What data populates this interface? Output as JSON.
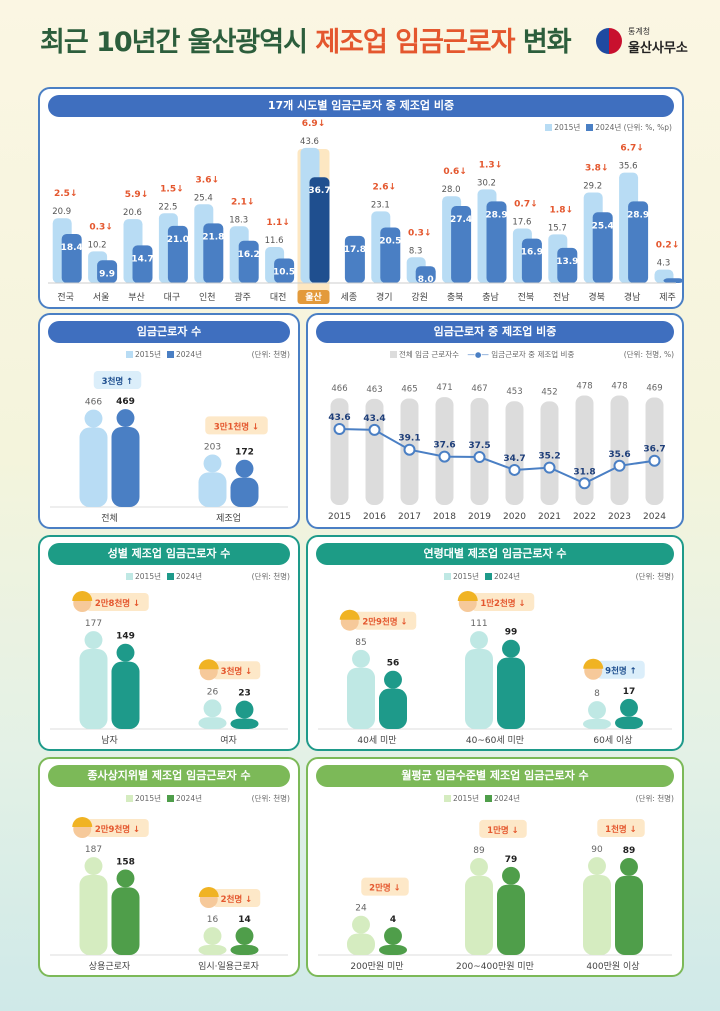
{
  "title": {
    "part1": "최근 10년간 울산광역시 ",
    "highlight": "제조업 임금근로자",
    "part2": " 변화"
  },
  "logo": {
    "small": "통계청",
    "big": "울산사무소"
  },
  "colors": {
    "blue_light": "#b8dcf4",
    "blue_dark": "#4a7fc4",
    "blue_header": "#3f6fbf",
    "teal_light": "#bfe8e4",
    "teal_dark": "#1e9a8a",
    "teal_header": "#1d9c86",
    "green_light": "#d5ecc0",
    "green_dark": "#4f9e4a",
    "green_header": "#7cb958",
    "red": "#e4572e",
    "gray_bar": "#dcdcdc"
  },
  "legend_common": {
    "y2015": "2015년",
    "y2024": "2024년",
    "unit_people": "(단위: 천명)"
  },
  "chart_data": [
    {
      "id": "sido",
      "type": "bar",
      "title": "17개 시도별 임금근로자 중 제조업 비중",
      "legend": [
        "2015년",
        "2024년"
      ],
      "unit": "(단위: %, %p)",
      "categories": [
        "전국",
        "서울",
        "부산",
        "대구",
        "인천",
        "광주",
        "대전",
        "울산",
        "세종",
        "경기",
        "강원",
        "충북",
        "충남",
        "전북",
        "전남",
        "경북",
        "경남",
        "제주"
      ],
      "series": [
        {
          "name": "2015년",
          "values": [
            20.9,
            10.2,
            20.6,
            22.5,
            25.4,
            18.3,
            11.6,
            43.6,
            null,
            23.1,
            8.3,
            28.0,
            30.2,
            17.6,
            15.7,
            29.2,
            35.6,
            4.3
          ]
        },
        {
          "name": "2024년",
          "values": [
            18.4,
            9.9,
            14.7,
            21.0,
            21.8,
            16.2,
            10.5,
            36.7,
            17.8,
            20.5,
            8.0,
            27.4,
            28.9,
            16.9,
            13.9,
            25.4,
            28.9,
            4.1
          ]
        }
      ],
      "change": [
        "2.5",
        "0.3",
        "5.9",
        "1.5",
        "3.6",
        "2.1",
        "1.1",
        "6.9",
        "",
        "2.6",
        "0.3",
        "0.6",
        "1.3",
        "0.7",
        "1.8",
        "3.8",
        "6.7",
        "0.2"
      ],
      "change_arrow": "↓",
      "highlight": "울산"
    },
    {
      "id": "wage_workers",
      "type": "bar",
      "title": "임금근로자 수",
      "legend": [
        "2015년",
        "2024년"
      ],
      "unit": "(단위: 천명)",
      "categories": [
        "전체",
        "제조업"
      ],
      "series": [
        {
          "name": "2015년",
          "values": [
            466,
            203
          ]
        },
        {
          "name": "2024년",
          "values": [
            469,
            172
          ]
        }
      ],
      "change": [
        "3천명 ↑",
        "3만1천명 ↓"
      ]
    },
    {
      "id": "share_trend",
      "type": "line",
      "title": "임금근로자 중 제조업 비중",
      "legend": [
        "전체 임금 근로자수",
        "임금근로자 중 제조업 비중"
      ],
      "unit": "(단위: 천명, %)",
      "x": [
        "2015",
        "2016",
        "2017",
        "2018",
        "2019",
        "2020",
        "2021",
        "2022",
        "2023",
        "2024"
      ],
      "series": [
        {
          "name": "전체 임금 근로자수",
          "type": "bar",
          "values": [
            466,
            463,
            465,
            471,
            467,
            453,
            452,
            478,
            478,
            469
          ]
        },
        {
          "name": "임금근로자 중 제조업 비중",
          "type": "line",
          "values": [
            43.6,
            43.4,
            39.1,
            37.6,
            37.5,
            34.7,
            35.2,
            31.8,
            35.6,
            36.7
          ]
        }
      ]
    },
    {
      "id": "gender",
      "type": "bar",
      "title": "성별 제조업 임금근로자 수",
      "legend": [
        "2015년",
        "2024년"
      ],
      "unit": "(단위: 천명)",
      "categories": [
        "남자",
        "여자"
      ],
      "series": [
        {
          "name": "2015년",
          "values": [
            177,
            26
          ]
        },
        {
          "name": "2024년",
          "values": [
            149,
            23
          ]
        }
      ],
      "change": [
        "2만8천명 ↓",
        "3천명 ↓"
      ]
    },
    {
      "id": "age",
      "type": "bar",
      "title": "연령대별 제조업 임금근로자 수",
      "legend": [
        "2015년",
        "2024년"
      ],
      "unit": "(단위: 천명)",
      "categories": [
        "40세 미만",
        "40~60세 미만",
        "60세 이상"
      ],
      "series": [
        {
          "name": "2015년",
          "values": [
            85,
            111,
            8
          ]
        },
        {
          "name": "2024년",
          "values": [
            56,
            99,
            17
          ]
        }
      ],
      "change": [
        "2만9천명 ↓",
        "1만2천명 ↓",
        "9천명 ↑"
      ]
    },
    {
      "id": "status",
      "type": "bar",
      "title": "종사상지위별 제조업 임금근로자 수",
      "legend": [
        "2015년",
        "2024년"
      ],
      "unit": "(단위: 천명)",
      "categories": [
        "상용근로자",
        "임시·일용근로자"
      ],
      "series": [
        {
          "name": "2015년",
          "values": [
            187,
            16
          ]
        },
        {
          "name": "2024년",
          "values": [
            158,
            14
          ]
        }
      ],
      "change": [
        "2만9천명 ↓",
        "2천명 ↓"
      ]
    },
    {
      "id": "wage_level",
      "type": "bar",
      "title": "월평균 임금수준별 제조업 임금근로자 수",
      "legend": [
        "2015년",
        "2024년"
      ],
      "unit": "(단위: 천명)",
      "categories": [
        "200만원 미만",
        "200~400만원 미만",
        "400만원 이상"
      ],
      "series": [
        {
          "name": "2015년",
          "values": [
            24,
            89,
            90
          ]
        },
        {
          "name": "2024년",
          "values": [
            4,
            79,
            89
          ]
        }
      ],
      "change": [
        "2만명 ↓",
        "1만명 ↓",
        "1천명 ↓"
      ]
    }
  ]
}
